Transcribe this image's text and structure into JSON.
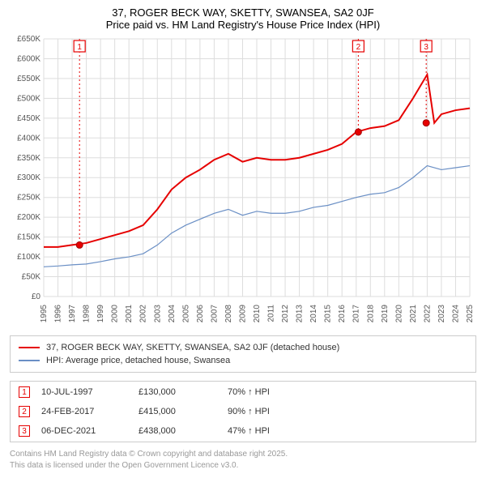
{
  "title_line1": "37, ROGER BECK WAY, SKETTY, SWANSEA, SA2 0JF",
  "title_line2": "Price paid vs. HM Land Registry's House Price Index (HPI)",
  "chart": {
    "type": "line",
    "background_color": "#ffffff",
    "grid_color": "#dddddd",
    "axis_label_color": "#555555",
    "axis_label_fontsize": 10,
    "x_years": [
      1995,
      1996,
      1997,
      1998,
      1999,
      2000,
      2001,
      2002,
      2003,
      2004,
      2005,
      2006,
      2007,
      2008,
      2009,
      2010,
      2011,
      2012,
      2013,
      2014,
      2015,
      2016,
      2017,
      2018,
      2019,
      2020,
      2021,
      2022,
      2023,
      2024,
      2025
    ],
    "xlim": [
      1995,
      2025
    ],
    "ylim": [
      0,
      650000
    ],
    "ytick_step": 50000,
    "yticks": [
      "£0",
      "£50K",
      "£100K",
      "£150K",
      "£200K",
      "£250K",
      "£300K",
      "£350K",
      "£400K",
      "£450K",
      "£500K",
      "£550K",
      "£600K",
      "£650K"
    ],
    "series": {
      "property": {
        "color": "#e60000",
        "stroke_width": 2,
        "values_by_year": {
          "1995": 125000,
          "1996": 125000,
          "1997": 130000,
          "1998": 135000,
          "1999": 145000,
          "2000": 155000,
          "2001": 165000,
          "2002": 180000,
          "2003": 220000,
          "2004": 270000,
          "2005": 300000,
          "2006": 320000,
          "2007": 345000,
          "2008": 360000,
          "2009": 340000,
          "2010": 350000,
          "2011": 345000,
          "2012": 345000,
          "2013": 350000,
          "2014": 360000,
          "2015": 370000,
          "2016": 385000,
          "2017": 415000,
          "2018": 425000,
          "2019": 430000,
          "2020": 445000,
          "2021": 500000,
          "2022": 560000,
          "2022.5": 438000,
          "2023": 460000,
          "2024": 470000,
          "2025": 475000
        }
      },
      "hpi": {
        "color": "#6a8fc5",
        "stroke_width": 1.2,
        "values_by_year": {
          "1995": 75000,
          "1996": 77000,
          "1997": 80000,
          "1998": 82000,
          "1999": 88000,
          "2000": 95000,
          "2001": 100000,
          "2002": 108000,
          "2003": 130000,
          "2004": 160000,
          "2005": 180000,
          "2006": 195000,
          "2007": 210000,
          "2008": 220000,
          "2009": 205000,
          "2010": 215000,
          "2011": 210000,
          "2012": 210000,
          "2013": 215000,
          "2014": 225000,
          "2015": 230000,
          "2016": 240000,
          "2017": 250000,
          "2018": 258000,
          "2019": 262000,
          "2020": 275000,
          "2021": 300000,
          "2022": 330000,
          "2023": 320000,
          "2024": 325000,
          "2025": 330000
        }
      }
    },
    "markers": [
      {
        "num": "1",
        "year": 1997.52,
        "value": 130000
      },
      {
        "num": "2",
        "year": 2017.15,
        "value": 415000
      },
      {
        "num": "3",
        "year": 2021.93,
        "value": 438000
      }
    ]
  },
  "legend": {
    "rows": [
      {
        "color": "#e60000",
        "label": "37, ROGER BECK WAY, SKETTY, SWANSEA, SA2 0JF (detached house)"
      },
      {
        "color": "#6a8fc5",
        "label": "HPI: Average price, detached house, Swansea"
      }
    ]
  },
  "sales_table": {
    "rows": [
      {
        "num": "1",
        "date": "10-JUL-1997",
        "price": "£130,000",
        "hpi": "70% ↑ HPI"
      },
      {
        "num": "2",
        "date": "24-FEB-2017",
        "price": "£415,000",
        "hpi": "90% ↑ HPI"
      },
      {
        "num": "3",
        "date": "06-DEC-2021",
        "price": "£438,000",
        "hpi": "47% ↑ HPI"
      }
    ]
  },
  "footer": {
    "line1": "Contains HM Land Registry data © Crown copyright and database right 2025.",
    "line2": "This data is licensed under the Open Government Licence v3.0."
  }
}
